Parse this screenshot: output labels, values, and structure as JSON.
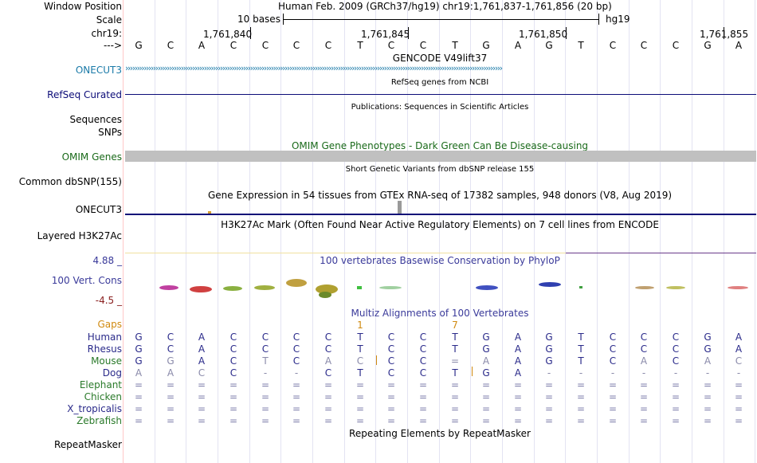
{
  "labels": {
    "window_position": "Window Position",
    "scale": "Scale",
    "chrom": "chr19:",
    "strand": "--->",
    "onecut3": "ONECUT3",
    "refseq": "RefSeq Curated",
    "sequences": "Sequences",
    "snps": "SNPs",
    "omim": "OMIM Genes",
    "common_dbsnp": "Common dbSNP(155)",
    "gtex": "ONECUT3",
    "layered": "Layered H3K27Ac",
    "cons_top": "4.88 _",
    "cons_name": "100 Vert. Cons",
    "cons_bottom": "-4.5 _",
    "gaps": "Gaps",
    "repeatmasker": "RepeatMasker"
  },
  "header": {
    "assembly": "Human Feb. 2009 (GRCh37/hg19)   chr19:1,761,837-1,761,856 (20 bp)",
    "scale_text": "10 bases",
    "db": "hg19",
    "positions": [
      "1,761,840",
      "1,761,845",
      "1,761,850",
      "1,761,855"
    ]
  },
  "sequence": [
    "G",
    "C",
    "A",
    "C",
    "C",
    "C",
    "C",
    "T",
    "C",
    "C",
    "T",
    "G",
    "A",
    "G",
    "T",
    "C",
    "C",
    "C",
    "G",
    "A"
  ],
  "tracks": {
    "gencode": "GENCODE V49lift37",
    "refseq": "RefSeq genes from NCBI",
    "publications": "Publications: Sequences in Scientific Articles",
    "omim": "OMIM Gene Phenotypes - Dark Green Can Be Disease-causing",
    "dbsnp": "Short Genetic Variants from dbSNP release 155",
    "gtex": "Gene Expression in 54 tissues from GTEx RNA-seq of 17382 samples, 948 donors (V8, Aug 2019)",
    "h3k27ac": "H3K27Ac Mark (Often Found Near Active Regulatory Elements) on 7 cell lines from ENCODE",
    "phylop": "100 vertebrates Basewise Conservation by PhyloP",
    "multiz": "Multiz Alignments of 100 Vertebrates",
    "repeatmasker": "Repeating Elements by RepeatMasker"
  },
  "gaps": [
    "",
    "",
    "",
    "",
    "",
    "",
    "",
    "1",
    "",
    "",
    "7",
    "",
    "",
    "",
    "",
    "",
    "",
    "",
    "",
    ""
  ],
  "species": [
    {
      "name": "Human",
      "color": "#2a2a8a",
      "bases": [
        "G",
        "C",
        "A",
        "C",
        "C",
        "C",
        "C",
        "T",
        "C",
        "C",
        "T",
        "G",
        "A",
        "G",
        "T",
        "C",
        "C",
        "C",
        "G",
        "A"
      ]
    },
    {
      "name": "Rhesus",
      "color": "#2a2a8a",
      "bases": [
        "G",
        "C",
        "A",
        "C",
        "C",
        "C",
        "C",
        "T",
        "C",
        "C",
        "T",
        "G",
        "A",
        "G",
        "T",
        "C",
        "C",
        "C",
        "G",
        "A"
      ]
    },
    {
      "name": "Mouse",
      "color": "#2a7a2a",
      "bases": [
        "G",
        "G",
        "A",
        "C",
        "T",
        "C",
        "A",
        "C",
        "C",
        "C",
        "=",
        "A",
        "A",
        "G",
        "T",
        "C",
        "A",
        "C",
        "A",
        "C"
      ]
    },
    {
      "name": "Dog",
      "color": "#2a2a8a",
      "bases": [
        "A",
        "A",
        "C",
        "C",
        "-",
        "-",
        "C",
        "T",
        "C",
        "C",
        "T",
        "G",
        "A",
        "-",
        "-",
        "-",
        "-",
        "-",
        "-",
        "-"
      ]
    },
    {
      "name": "Elephant",
      "color": "#2a7a2a",
      "bases": [
        "=",
        "=",
        "=",
        "=",
        "=",
        "=",
        "=",
        "=",
        "=",
        "=",
        "=",
        "=",
        "=",
        "=",
        "=",
        "=",
        "=",
        "=",
        "=",
        "="
      ]
    },
    {
      "name": "Chicken",
      "color": "#2a7a2a",
      "bases": [
        "=",
        "=",
        "=",
        "=",
        "=",
        "=",
        "=",
        "=",
        "=",
        "=",
        "=",
        "=",
        "=",
        "=",
        "=",
        "=",
        "=",
        "=",
        "=",
        "="
      ]
    },
    {
      "name": "X_tropicalis",
      "color": "#2a2a8a",
      "bases": [
        "=",
        "=",
        "=",
        "=",
        "=",
        "=",
        "=",
        "=",
        "=",
        "=",
        "=",
        "=",
        "=",
        "=",
        "=",
        "=",
        "=",
        "=",
        "=",
        "="
      ]
    },
    {
      "name": "Zebrafish",
      "color": "#2a7a2a",
      "bases": [
        "=",
        "=",
        "=",
        "=",
        "=",
        "=",
        "=",
        "=",
        "=",
        "=",
        "=",
        "=",
        "=",
        "=",
        "=",
        "=",
        "=",
        "=",
        "=",
        "="
      ]
    }
  ],
  "colors": {
    "gene_blue": "#1a7aa8",
    "refseq_navy": "#0c0c78",
    "omim_green": "#1a6a1a",
    "gaps_orange": "#d08a10",
    "cons_blue": "#3a3a9a",
    "cons_red": "#8a2020"
  }
}
